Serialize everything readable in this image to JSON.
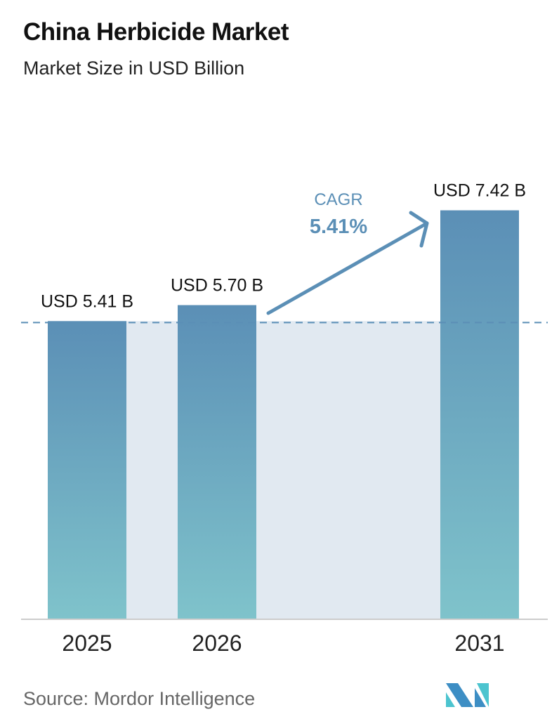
{
  "title": "China Herbicide Market",
  "subtitle": "Market Size in USD Billion",
  "source": "Source:  Mordor Intelligence",
  "logo_text": "MI",
  "colors": {
    "bar_top": "#5b8fb6",
    "bar_bottom": "#7fc3cb",
    "band": "#e1e9f1",
    "accent": "#5b8fb6"
  },
  "chart_data": {
    "type": "bar",
    "categories": [
      "2025",
      "2026",
      "2031"
    ],
    "values": [
      5.41,
      5.7,
      7.42
    ],
    "data_labels": [
      "USD 5.41 B",
      "USD 5.70 B",
      "USD 7.42 B"
    ],
    "ylim": [
      0,
      8
    ],
    "grid": false,
    "annotation": {
      "label": "CAGR",
      "value": "5.41%"
    }
  }
}
